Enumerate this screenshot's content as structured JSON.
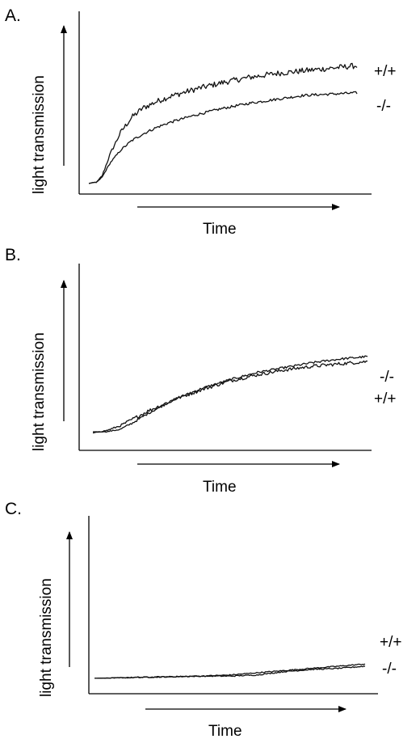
{
  "chart_data": [
    {
      "type": "line",
      "panel_label": "A.",
      "xlabel": "Time",
      "ylabel": "light transmission",
      "xlim": [
        0,
        100
      ],
      "ylim": [
        0,
        100
      ],
      "series": [
        {
          "name": "+/+",
          "x": [
            0,
            3,
            5,
            8,
            12,
            16,
            20,
            25,
            30,
            35,
            40,
            50,
            60,
            70,
            80,
            90,
            100
          ],
          "y": [
            2,
            3,
            8,
            25,
            42,
            53,
            60,
            65,
            69,
            72,
            75,
            80,
            84,
            87,
            89,
            91,
            93
          ],
          "noise": 2.2
        },
        {
          "name": "-/-",
          "x": [
            0,
            3,
            5,
            8,
            12,
            16,
            20,
            25,
            30,
            35,
            40,
            50,
            60,
            70,
            80,
            90,
            100
          ],
          "y": [
            2,
            3,
            7,
            18,
            28,
            35,
            40,
            45,
            49,
            52,
            55,
            60,
            64,
            67,
            70,
            71,
            72
          ],
          "noise": 1.0
        }
      ]
    },
    {
      "type": "line",
      "panel_label": "B.",
      "xlabel": "Time",
      "ylabel": "light transmission",
      "xlim": [
        0,
        100
      ],
      "ylim": [
        0,
        100
      ],
      "series": [
        {
          "name": "-/-",
          "x": [
            0,
            5,
            10,
            15,
            20,
            25,
            30,
            40,
            50,
            60,
            70,
            80,
            90,
            100
          ],
          "y": [
            4,
            4,
            6,
            12,
            19,
            25,
            31,
            40,
            47,
            53,
            57,
            61,
            64,
            66
          ],
          "noise": 0.9
        },
        {
          "name": "+/+",
          "x": [
            0,
            5,
            10,
            15,
            20,
            25,
            30,
            40,
            50,
            60,
            70,
            80,
            90,
            100
          ],
          "y": [
            3,
            5,
            9,
            15,
            21,
            26,
            31,
            39,
            46,
            51,
            55,
            58,
            60,
            62
          ],
          "noise": 1.4
        }
      ]
    },
    {
      "type": "line",
      "panel_label": "C.",
      "xlabel": "Time",
      "ylabel": "light transmission",
      "xlim": [
        0,
        100
      ],
      "ylim": [
        0,
        100
      ],
      "series": [
        {
          "name": "+/+",
          "x": [
            0,
            20,
            40,
            50,
            60,
            70,
            80,
            90,
            100
          ],
          "y": [
            3,
            4,
            5,
            6,
            8,
            10,
            12,
            14,
            16
          ],
          "noise": 0.5
        },
        {
          "name": "-/-",
          "x": [
            0,
            20,
            40,
            50,
            60,
            70,
            80,
            90,
            100
          ],
          "y": [
            3,
            4,
            5,
            5,
            6,
            9,
            11,
            12,
            14
          ],
          "noise": 0.5
        }
      ]
    }
  ]
}
